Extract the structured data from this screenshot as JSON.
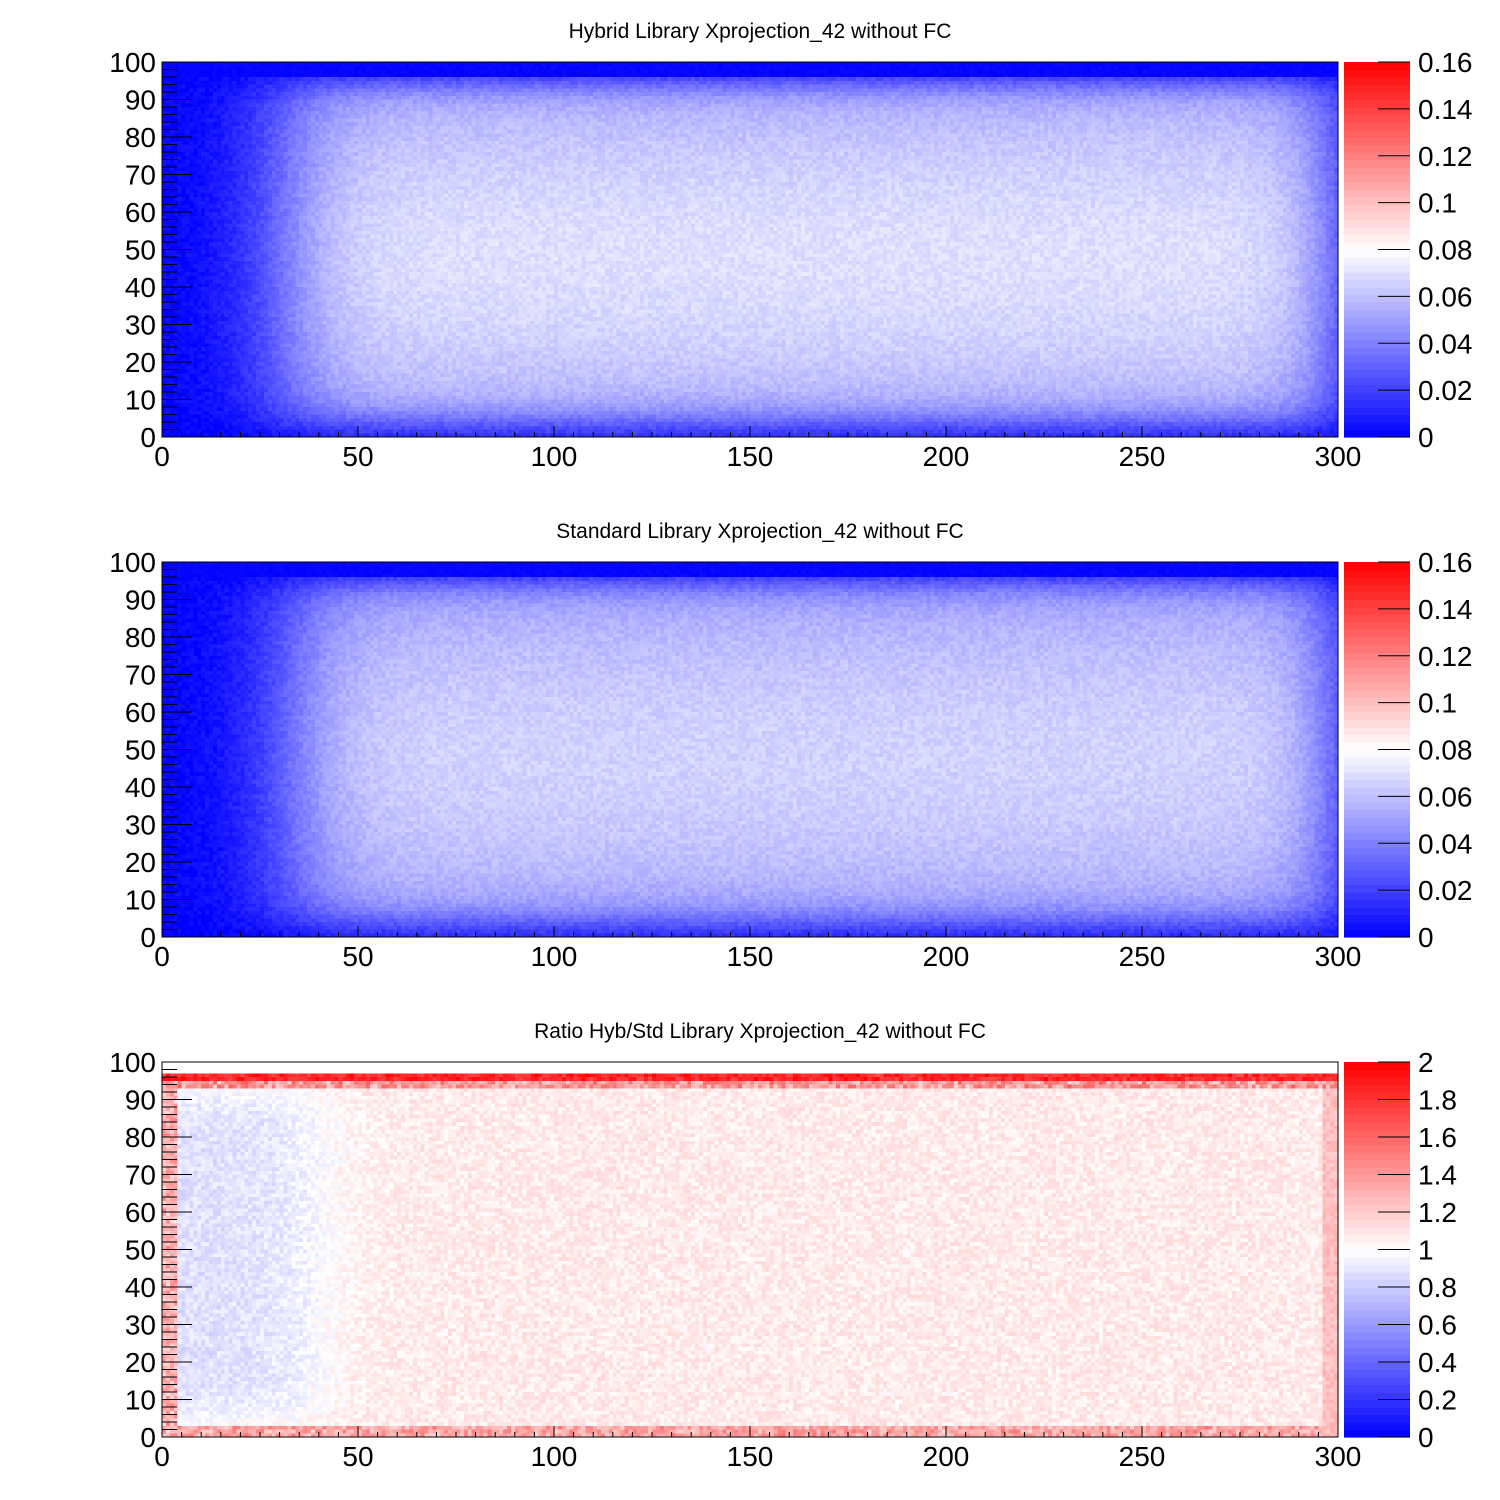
{
  "chart_data": [
    {
      "type": "heatmap",
      "title": "Hybrid Library Xprojection_42 without FC",
      "xlim": [
        0,
        300
      ],
      "ylim": [
        0,
        100
      ],
      "x_ticks": [
        "0",
        "50",
        "100",
        "150",
        "200",
        "250",
        "300"
      ],
      "y_ticks": [
        "0",
        "10",
        "20",
        "30",
        "40",
        "50",
        "60",
        "70",
        "80",
        "90",
        "100"
      ],
      "colorbar": {
        "min": 0,
        "max": 0.16,
        "ticks": [
          "0",
          "0.02",
          "0.04",
          "0.06",
          "0.08",
          "0.1",
          "0.12",
          "0.14",
          "0.16"
        ]
      },
      "pattern": {
        "kind": "efficiency",
        "low_value": 0.0,
        "plateau_value": 0.07,
        "edge_value": 0.02,
        "x_rise_center": 30,
        "top_band_start": 96,
        "top_band_value": 0.0
      }
    },
    {
      "type": "heatmap",
      "title": "Standard Library Xprojection_42 without FC",
      "xlim": [
        0,
        300
      ],
      "ylim": [
        0,
        100
      ],
      "x_ticks": [
        "0",
        "50",
        "100",
        "150",
        "200",
        "250",
        "300"
      ],
      "y_ticks": [
        "0",
        "10",
        "20",
        "30",
        "40",
        "50",
        "60",
        "70",
        "80",
        "90",
        "100"
      ],
      "colorbar": {
        "min": 0,
        "max": 0.16,
        "ticks": [
          "0",
          "0.02",
          "0.04",
          "0.06",
          "0.08",
          "0.1",
          "0.12",
          "0.14",
          "0.16"
        ]
      },
      "pattern": {
        "kind": "efficiency",
        "low_value": 0.0,
        "plateau_value": 0.066,
        "edge_value": 0.02,
        "x_rise_center": 32,
        "top_band_start": 96,
        "top_band_value": 0.0
      }
    },
    {
      "type": "heatmap",
      "title": "Ratio Hyb/Std Library Xprojection_42 without FC",
      "xlim": [
        0,
        300
      ],
      "ylim": [
        0,
        100
      ],
      "x_ticks": [
        "0",
        "50",
        "100",
        "150",
        "200",
        "250",
        "300"
      ],
      "y_ticks": [
        "0",
        "10",
        "20",
        "30",
        "40",
        "50",
        "60",
        "70",
        "80",
        "90",
        "100"
      ],
      "colorbar": {
        "min": 0,
        "max": 2,
        "ticks": [
          "0",
          "0.2",
          "0.4",
          "0.6",
          "0.8",
          "1",
          "1.2",
          "1.4",
          "1.6",
          "1.8",
          "2"
        ]
      },
      "pattern": {
        "kind": "ratio",
        "plateau_value": 1.08,
        "left_value": 0.88,
        "left_extent": 40,
        "top_band_y": 96,
        "top_band_value": 1.85,
        "bottom_value": 1.2,
        "right_edge_value": 1.25,
        "empty_above": 97
      }
    }
  ]
}
